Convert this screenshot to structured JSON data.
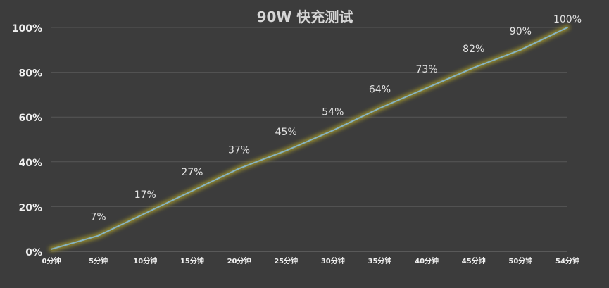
{
  "chart_data": {
    "type": "line",
    "title": "90W 快充测试",
    "xlabel": "",
    "ylabel": "",
    "x": [
      "0分钟",
      "5分钟",
      "10分钟",
      "15分钟",
      "20分钟",
      "25分钟",
      "30分钟",
      "35分钟",
      "40分钟",
      "45分钟",
      "50分钟",
      "54分钟"
    ],
    "series": [
      {
        "values": [
          1,
          7,
          17,
          27,
          37,
          45,
          54,
          64,
          73,
          82,
          90,
          100
        ],
        "data_labels": [
          "",
          "7%",
          "17%",
          "27%",
          "37%",
          "45%",
          "54%",
          "64%",
          "73%",
          "82%",
          "90%",
          "100%"
        ],
        "color": "#86b3c4",
        "glow_color": "#a79b2a"
      }
    ],
    "ylim": [
      0,
      100
    ],
    "yticks": [
      0,
      20,
      40,
      60,
      80,
      100
    ],
    "ytick_labels": [
      "0%",
      "20%",
      "40%",
      "60%",
      "80%",
      "100%"
    ],
    "grid": true,
    "legend": "none"
  },
  "colors": {
    "background": "#3c3c3c",
    "grid": "#565656",
    "axis": "#767676",
    "title": "#d6d6d6",
    "tick_text": "#efefef",
    "label_text": "#e2e2e2"
  }
}
